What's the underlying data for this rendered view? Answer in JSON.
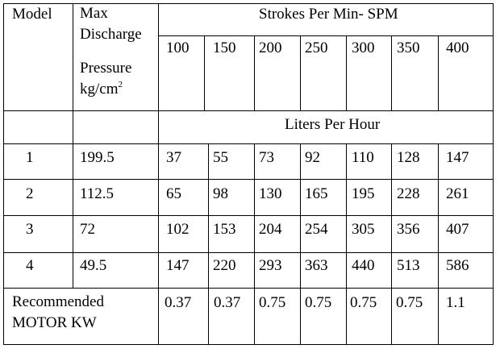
{
  "header": {
    "model": "Model",
    "max_line1": "Max",
    "max_line2": "Discharge",
    "pressure_line1": "Pressure",
    "pressure_unit": "kg/cm",
    "pressure_sup": "2",
    "spm": "Strokes Per Min- SPM",
    "lph": "Liters Per Hour"
  },
  "spm_values": [
    "100",
    "150",
    "200",
    "250",
    "300",
    "350",
    "400"
  ],
  "rows": [
    {
      "model": "1",
      "pressure": "199.5",
      "values": [
        "37",
        "55",
        "73",
        "92",
        "110",
        "128",
        "147"
      ]
    },
    {
      "model": "2",
      "pressure": "112.5",
      "values": [
        "65",
        "98",
        "130",
        "165",
        "195",
        "228",
        "261"
      ]
    },
    {
      "model": "3",
      "pressure": "72",
      "values": [
        "102",
        "153",
        "204",
        "254",
        "305",
        "356",
        "407"
      ]
    },
    {
      "model": "4",
      "pressure": "49.5",
      "values": [
        "147",
        "220",
        "293",
        "363",
        "440",
        "513",
        "586"
      ]
    }
  ],
  "motor": {
    "label_line1": "Recommended",
    "label_line2": "MOTOR KW",
    "values": [
      "0.37",
      "0.37",
      "0.75",
      "0.75",
      "0.75",
      "0.75",
      "1.1"
    ]
  }
}
